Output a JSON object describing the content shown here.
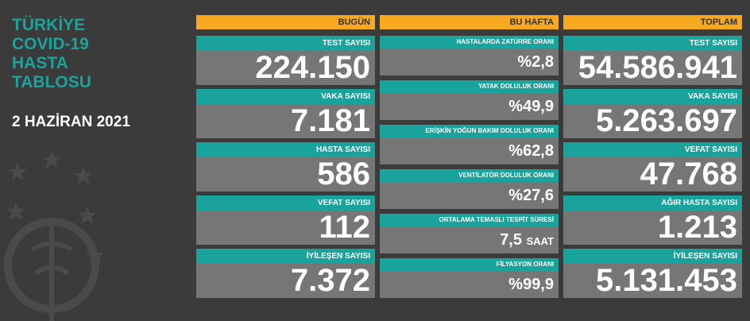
{
  "title": [
    "TÜRKİYE",
    "COVID-19",
    "HASTA",
    "TABLOSU"
  ],
  "date": "2 HAZİRAN 2021",
  "columns": [
    {
      "header": "BUGÜN",
      "items": [
        {
          "label": "TEST SAYISI",
          "value": "224.150"
        },
        {
          "label": "VAKA SAYISI",
          "value": "7.181"
        },
        {
          "label": "HASTA SAYISI",
          "value": "586"
        },
        {
          "label": "VEFAT SAYISI",
          "value": "112"
        },
        {
          "label": "İYİLEŞEN SAYISI",
          "value": "7.372"
        }
      ]
    },
    {
      "header": "BU HAFTA",
      "items": [
        {
          "label": "HASTALARDA ZATÜRRE ORANI",
          "value": "%2,8"
        },
        {
          "label": "YATAK DOLULUK ORANI",
          "value": "%49,9"
        },
        {
          "label": "ERİŞKİN YOĞUN BAKIM DOLULUK ORANI",
          "value": "%62,8"
        },
        {
          "label": "VENTİLATÖR DOLULUK ORANI",
          "value": "%27,6"
        },
        {
          "label": "ORTALAMA TEMASLI TESPİT SÜRESİ",
          "value": "7,5",
          "unit": "SAAT"
        },
        {
          "label": "FİLYASYON ORANI",
          "value": "%99,9"
        }
      ]
    },
    {
      "header": "TOPLAM",
      "items": [
        {
          "label": "TEST SAYISI",
          "value": "54.586.941"
        },
        {
          "label": "VAKA SAYISI",
          "value": "5.263.697"
        },
        {
          "label": "VEFAT SAYISI",
          "value": "47.768"
        },
        {
          "label": "AĞIR HASTA SAYISI",
          "value": "1.213"
        },
        {
          "label": "İYİLEŞEN SAYISI",
          "value": "5.131.453"
        }
      ]
    }
  ]
}
